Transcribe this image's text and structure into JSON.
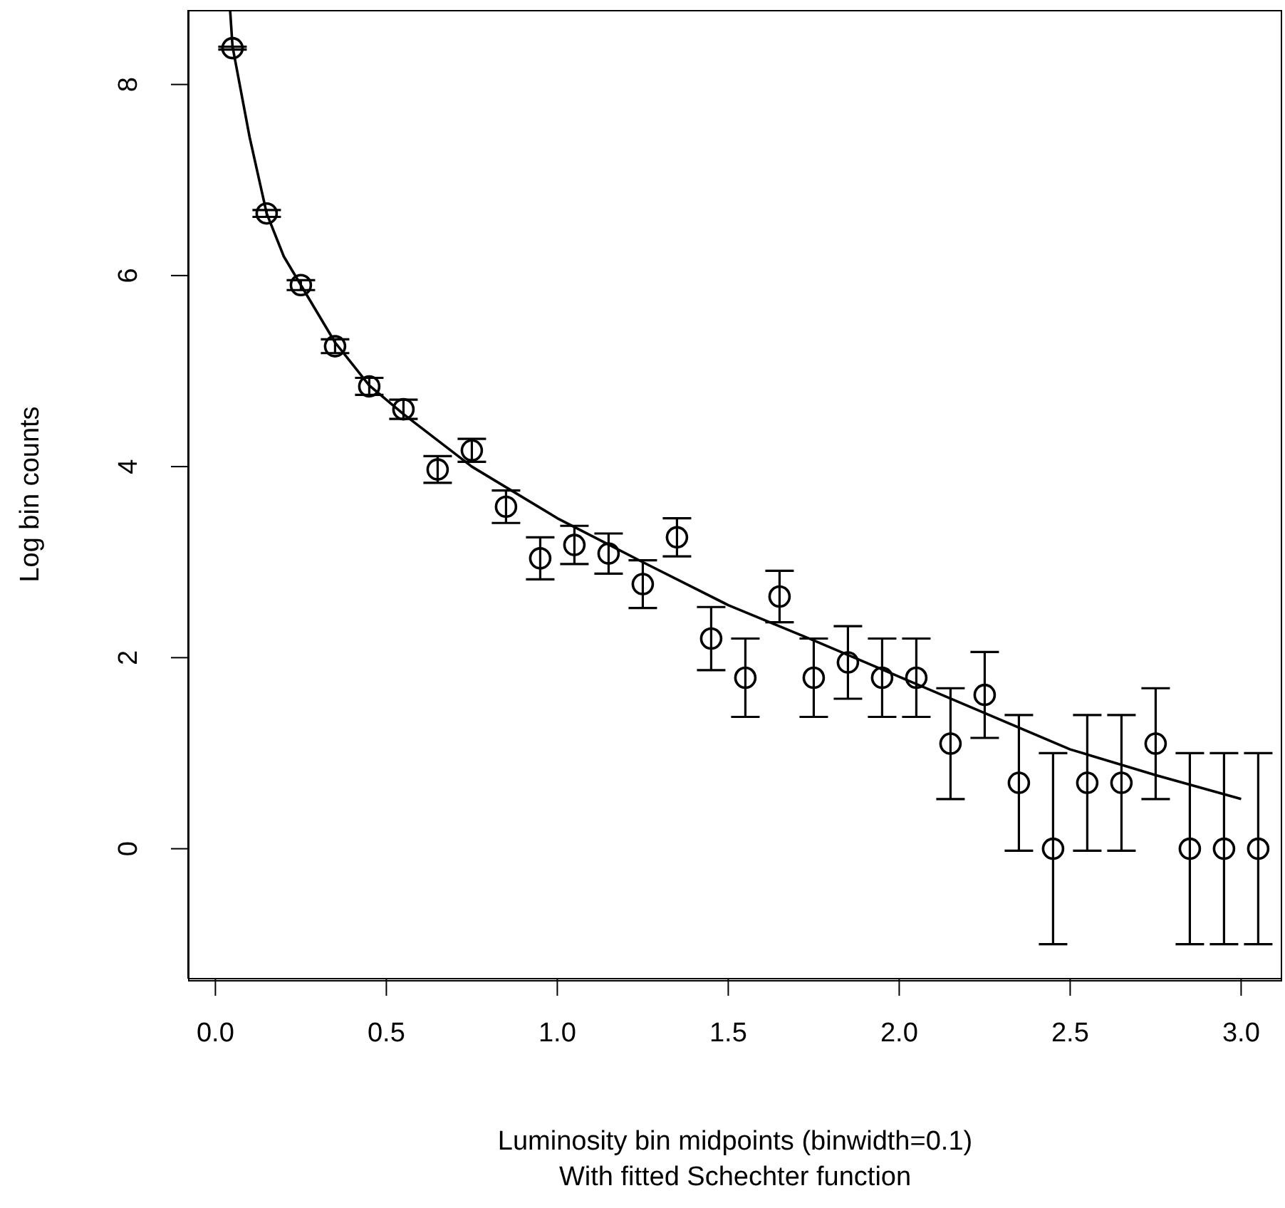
{
  "chart_data": {
    "type": "scatter",
    "xlabel": "Luminosity bin midpoints (binwidth=0.1)",
    "subtitle": "With fitted Schechter function",
    "ylabel": "Log bin counts",
    "xlim": [
      -0.08,
      3.12
    ],
    "xticks": [
      {
        "value": 0,
        "label": "0.0"
      },
      {
        "value": 0.5,
        "label": "0.5"
      },
      {
        "value": 1,
        "label": "1.0"
      },
      {
        "value": 1.5,
        "label": "1.5"
      },
      {
        "value": 2,
        "label": "2.0"
      },
      {
        "value": 2.5,
        "label": "2.5"
      },
      {
        "value": 3,
        "label": "3.0"
      }
    ],
    "ylim": [
      -1.36,
      8.78
    ],
    "yticks": [
      0,
      2,
      4,
      6,
      8
    ],
    "series": [
      {
        "color": "#000000",
        "marker": "circle",
        "x": [
          0.05,
          0.15,
          0.25,
          0.35,
          0.45,
          0.55,
          0.65,
          0.75,
          0.85,
          0.95,
          1.05,
          1.15,
          1.25,
          1.35,
          1.45,
          1.55,
          1.65,
          1.75,
          1.85,
          1.95,
          2.05,
          2.15,
          2.25,
          2.35,
          2.45,
          2.55,
          2.65,
          2.75,
          2.85,
          2.95,
          3.05
        ],
        "values": [
          8.38,
          6.65,
          5.9,
          5.26,
          4.84,
          4.6,
          3.97,
          4.17,
          3.58,
          3.04,
          3.18,
          3.09,
          2.77,
          3.26,
          2.2,
          1.79,
          2.64,
          1.79,
          1.95,
          1.79,
          1.79,
          1.1,
          1.61,
          0.69,
          0,
          0.69,
          0.69,
          1.1,
          0,
          0,
          0
        ],
        "errors": [
          0.015,
          0.036,
          0.052,
          0.072,
          0.089,
          0.1,
          0.14,
          0.12,
          0.17,
          0.22,
          0.2,
          0.21,
          0.25,
          0.2,
          0.33,
          0.41,
          0.27,
          0.41,
          0.38,
          0.41,
          0.41,
          0.58,
          0.45,
          0.71,
          1,
          0.71,
          0.71,
          0.58,
          1,
          1,
          1
        ]
      },
      {
        "type": "line",
        "color": "#000000",
        "x": [
          0.043,
          0.05,
          0.1,
          0.15,
          0.2,
          0.25,
          0.35,
          0.45,
          0.55,
          0.75,
          1,
          1.25,
          1.5,
          1.75,
          2,
          2.25,
          2.5,
          2.75,
          3
        ],
        "values": [
          8.78,
          8.4,
          7.45,
          6.65,
          6.2,
          5.9,
          5.3,
          4.85,
          4.55,
          4.0,
          3.46,
          3.0,
          2.55,
          2.18,
          1.8,
          1.42,
          1.04,
          0.77,
          0.52
        ]
      }
    ]
  }
}
